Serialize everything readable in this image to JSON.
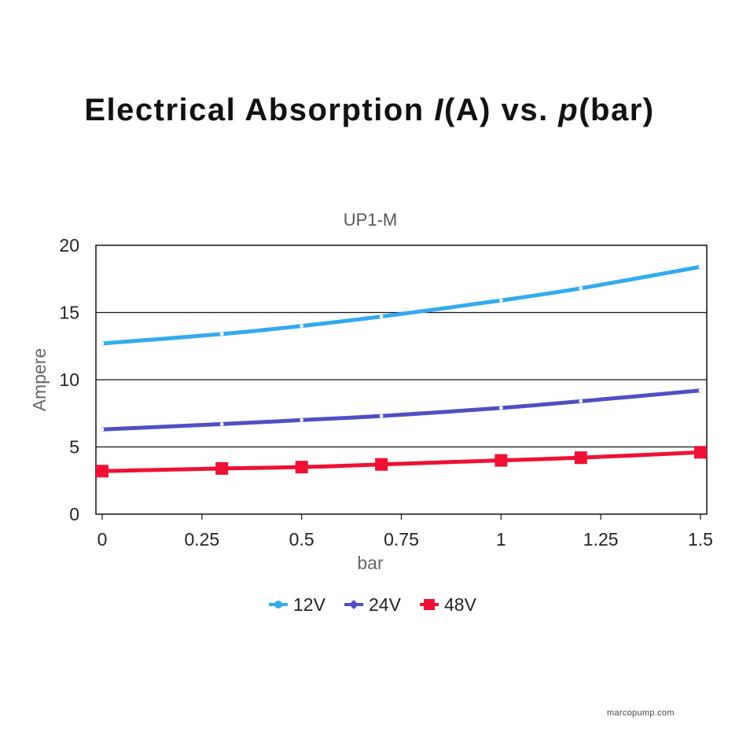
{
  "page": {
    "title_parts": [
      "Electrical Absorption ",
      "I",
      "(A) vs. ",
      "p",
      "(bar)"
    ],
    "watermark": "marcopump.com"
  },
  "chart_data": {
    "type": "line",
    "title": "UP1-M",
    "xlabel": "bar",
    "ylabel": "Ampere",
    "xlim": [
      0,
      1.5
    ],
    "ylim": [
      0,
      20
    ],
    "xticks": [
      0,
      0.25,
      0.5,
      0.75,
      1,
      1.25,
      1.5
    ],
    "xtick_labels": [
      "0",
      "0.25",
      "0.5",
      "0.75",
      "1",
      "1.25",
      "1.5"
    ],
    "yticks": [
      0,
      5,
      10,
      15,
      20
    ],
    "ytick_labels": [
      "0",
      "5",
      "10",
      "15",
      "20"
    ],
    "grid": "horizontal",
    "legend": "bottom",
    "x": [
      0,
      0.3,
      0.5,
      0.7,
      1.0,
      1.2,
      1.5
    ],
    "series": [
      {
        "name": "12V",
        "values": [
          12.7,
          13.4,
          14.0,
          14.7,
          15.9,
          16.8,
          18.4
        ],
        "color": "#33aaee",
        "marker": "circle"
      },
      {
        "name": "24V",
        "values": [
          6.3,
          6.7,
          7.0,
          7.3,
          7.9,
          8.4,
          9.2
        ],
        "color": "#4f4fc4",
        "marker": "diamond"
      },
      {
        "name": "48V",
        "values": [
          3.2,
          3.4,
          3.5,
          3.7,
          4.0,
          4.2,
          4.6
        ],
        "color": "#ee1133",
        "marker": "square"
      }
    ]
  }
}
